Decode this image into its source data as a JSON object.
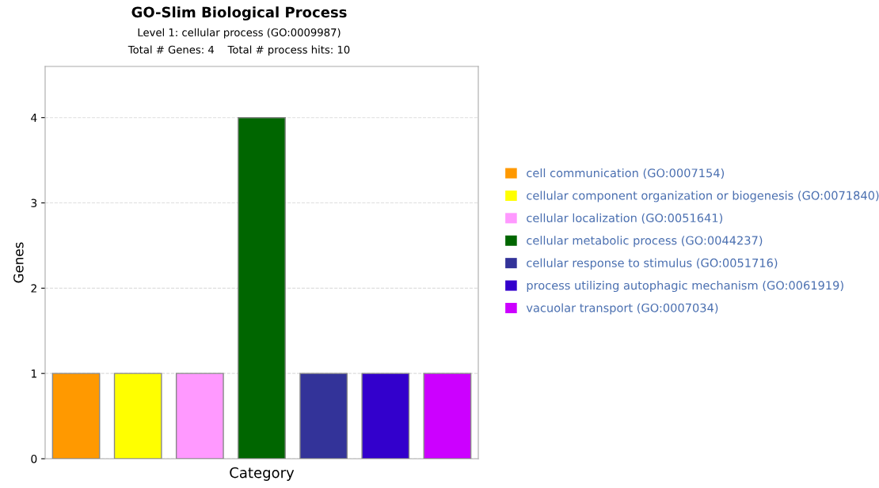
{
  "chart_data": {
    "type": "bar",
    "title": "GO-Slim Biological Process",
    "subtitle": "Level 1: cellular process (GO:0009987)\nTotal # Genes: 4    Total # process hits: 10",
    "xlabel": "Category",
    "ylabel": "Genes",
    "categories": [
      null,
      null,
      null,
      null,
      null,
      null,
      null
    ],
    "series": [
      {
        "name": "cell communication (GO:0007154)",
        "color": "#ff9900",
        "values": [
          1,
          null,
          null,
          null,
          null,
          null,
          null
        ]
      },
      {
        "name": "cellular component organization or biogenesis (GO:0071840)",
        "color": "#ffff00",
        "values": [
          null,
          1,
          null,
          null,
          null,
          null,
          null
        ]
      },
      {
        "name": "cellular localization (GO:0051641)",
        "color": "#ff99ff",
        "values": [
          null,
          null,
          1,
          null,
          null,
          null,
          null
        ]
      },
      {
        "name": "cellular metabolic process (GO:0044237)",
        "color": "#006600",
        "values": [
          null,
          null,
          null,
          4,
          null,
          null,
          null
        ]
      },
      {
        "name": "cellular response to stimulus (GO:0051716)",
        "color": "#333399",
        "values": [
          null,
          null,
          null,
          null,
          1,
          null,
          null
        ]
      },
      {
        "name": "process utilizing autophagic mechanism (GO:0061919)",
        "color": "#3300cc",
        "values": [
          null,
          null,
          null,
          null,
          null,
          1,
          null
        ]
      },
      {
        "name": "vacuolar transport (GO:0007034)",
        "color": "#cc00ff",
        "values": [
          null,
          null,
          null,
          null,
          null,
          null,
          1
        ]
      }
    ],
    "ylim": [
      0,
      4.6
    ],
    "yticks": [
      0,
      1,
      2,
      3,
      4
    ],
    "grid": "y",
    "legend": "right"
  }
}
